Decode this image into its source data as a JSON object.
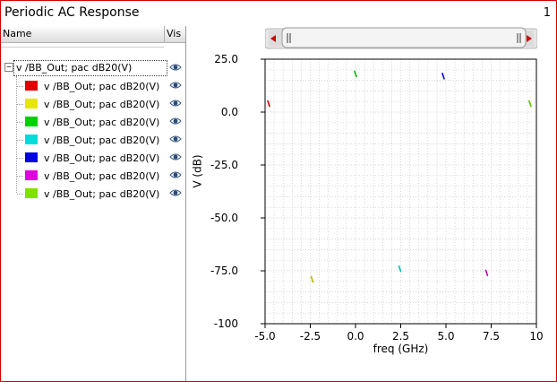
{
  "window": {
    "title": "Periodic AC Response",
    "subwindow_number": "1"
  },
  "legend": {
    "headers": {
      "name": "Name",
      "visibility": "Vis"
    },
    "group": {
      "label": "v /BB_Out; pac dB20(V)",
      "expander": "−",
      "visible_icon": "eye-icon"
    },
    "items": [
      {
        "label": "v /BB_Out; pac dB20(V)",
        "color": "#e00000"
      },
      {
        "label": "v /BB_Out; pac dB20(V)",
        "color": "#e6e600"
      },
      {
        "label": "v /BB_Out; pac dB20(V)",
        "color": "#00d000"
      },
      {
        "label": "v /BB_Out; pac dB20(V)",
        "color": "#00dcdc"
      },
      {
        "label": "v /BB_Out; pac dB20(V)",
        "color": "#0000e0"
      },
      {
        "label": "v /BB_Out; pac dB20(V)",
        "color": "#e000e0"
      },
      {
        "label": "v /BB_Out; pac dB20(V)",
        "color": "#80e000"
      }
    ]
  },
  "chart_data": {
    "type": "scatter",
    "xlabel": "freq (GHz)",
    "ylabel": "V (dB)",
    "xlim": [
      -5.0,
      10.0
    ],
    "ylim": [
      -100,
      25.0
    ],
    "xticks": [
      "-5.0",
      "-2.5",
      "0.0",
      "2.5",
      "5.0",
      "7.5",
      "10"
    ],
    "yticks": [
      "25.0",
      "0.0",
      "-25.0",
      "-50.0",
      "-75.0",
      "-100"
    ],
    "grid": true,
    "series": [
      {
        "color": "#e00000",
        "points": [
          [
            -4.8,
            4
          ]
        ]
      },
      {
        "color": "#b8b800",
        "points": [
          [
            -2.4,
            -79
          ]
        ]
      },
      {
        "color": "#00b000",
        "points": [
          [
            0.0,
            18
          ]
        ]
      },
      {
        "color": "#00c0c0",
        "points": [
          [
            2.45,
            -74
          ]
        ]
      },
      {
        "color": "#0000e0",
        "points": [
          [
            4.85,
            17
          ]
        ]
      },
      {
        "color": "#c000c0",
        "points": [
          [
            7.25,
            -76
          ]
        ]
      },
      {
        "color": "#60c000",
        "points": [
          [
            9.65,
            4
          ]
        ]
      }
    ]
  }
}
